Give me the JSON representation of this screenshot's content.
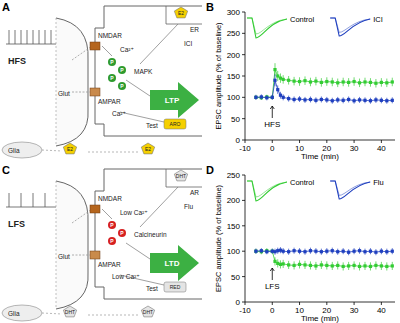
{
  "panel_labels": [
    "A",
    "B",
    "C",
    "D"
  ],
  "diagrams": [
    {
      "texts": [
        "HFS",
        "NMDAR",
        "Ca²⁺",
        "E2",
        "ER",
        "ICI",
        "MAPK",
        "LTP",
        "Glut",
        "AMPAR",
        "Ca²⁺",
        "Test",
        "ARO",
        "Glia",
        "E2",
        "E2",
        "P",
        "P",
        "P",
        "P"
      ]
    },
    {
      "texts": [
        "LFS",
        "NMDAR",
        "Low Ca²⁺",
        "DHT",
        "AR",
        "Flu",
        "Calcineurin",
        "LTD",
        "Glut",
        "AMPAR",
        "Low Ca²⁺",
        "Test",
        "RED",
        "Glia",
        "DHT",
        "DHT",
        "P",
        "P",
        "P"
      ]
    }
  ],
  "chart_data": [
    {
      "type": "line",
      "x_label": "Time (min)",
      "y_label": "EPSC amplitude (% of baseline)",
      "x": [
        -6,
        -4,
        -2,
        0,
        1,
        2,
        3,
        4,
        6,
        8,
        10,
        12,
        14,
        16,
        18,
        20,
        22,
        24,
        26,
        28,
        30,
        32,
        34,
        36,
        38,
        40,
        42,
        44
      ],
      "xlim": [
        -10,
        45
      ],
      "xticks": [
        -10,
        0,
        10,
        20,
        30,
        40
      ],
      "ylim": [
        0,
        300
      ],
      "yticks": [
        0,
        50,
        100,
        150,
        200,
        250,
        300
      ],
      "grid": false,
      "legend": "upper right",
      "annotations": [
        {
          "text": "HFS",
          "x": 0
        }
      ],
      "series": [
        {
          "name": "Control",
          "color": "#33cc33",
          "marker": "square",
          "values": [
            100,
            99,
            101,
            100,
            165,
            150,
            145,
            142,
            140,
            138,
            137,
            139,
            136,
            138,
            135,
            137,
            136,
            134,
            136,
            135,
            137,
            134,
            136,
            135,
            133,
            135,
            134,
            136
          ],
          "errors": [
            5,
            5,
            5,
            5,
            15,
            12,
            11,
            10,
            10,
            10,
            10,
            10,
            10,
            10,
            10,
            10,
            10,
            10,
            10,
            10,
            10,
            10,
            10,
            10,
            10,
            10,
            10,
            10
          ]
        },
        {
          "name": "ICI",
          "color": "#1f3fbf",
          "marker": "square",
          "values": [
            100,
            101,
            99,
            100,
            140,
            118,
            105,
            100,
            97,
            95,
            96,
            94,
            95,
            93,
            95,
            94,
            92,
            94,
            93,
            95,
            92,
            94,
            93,
            92,
            94,
            93,
            92,
            93
          ],
          "errors": [
            6,
            6,
            6,
            6,
            14,
            10,
            8,
            7,
            7,
            7,
            7,
            7,
            7,
            7,
            7,
            7,
            7,
            7,
            7,
            7,
            7,
            7,
            7,
            7,
            7,
            7,
            7,
            7
          ]
        }
      ]
    },
    {
      "type": "line",
      "x_label": "Time (min)",
      "y_label": "EPSC amplitude (% of baseline)",
      "x": [
        -6,
        -4,
        -2,
        0,
        1,
        2,
        3,
        4,
        6,
        8,
        10,
        12,
        14,
        16,
        18,
        20,
        22,
        24,
        26,
        28,
        30,
        32,
        34,
        36,
        38,
        40,
        42,
        44
      ],
      "xlim": [
        -10,
        45
      ],
      "xticks": [
        -10,
        0,
        10,
        20,
        30,
        40
      ],
      "ylim": [
        0,
        250
      ],
      "yticks": [
        0,
        50,
        100,
        150,
        200,
        250
      ],
      "grid": false,
      "legend": "upper right",
      "annotations": [
        {
          "text": "LFS",
          "x": 0
        }
      ],
      "series": [
        {
          "name": "Control",
          "color": "#33cc33",
          "marker": "square",
          "values": [
            100,
            99,
            101,
            100,
            80,
            76,
            74,
            75,
            73,
            72,
            74,
            73,
            72,
            71,
            73,
            72,
            71,
            72,
            70,
            71,
            72,
            70,
            71,
            70,
            72,
            71,
            70,
            71
          ],
          "errors": [
            5,
            5,
            5,
            5,
            8,
            8,
            8,
            8,
            8,
            8,
            8,
            8,
            8,
            8,
            8,
            8,
            8,
            8,
            8,
            8,
            8,
            8,
            8,
            8,
            8,
            8,
            8,
            8
          ]
        },
        {
          "name": "Flu",
          "color": "#1f3fbf",
          "marker": "square",
          "values": [
            100,
            101,
            99,
            100,
            99,
            101,
            102,
            100,
            99,
            101,
            100,
            99,
            101,
            100,
            99,
            100,
            101,
            99,
            100,
            98,
            100,
            101,
            99,
            100,
            98,
            100,
            99,
            100
          ],
          "errors": [
            5,
            5,
            5,
            5,
            6,
            6,
            6,
            6,
            6,
            6,
            6,
            6,
            6,
            6,
            6,
            6,
            6,
            6,
            6,
            6,
            6,
            6,
            6,
            6,
            6,
            6,
            6,
            6
          ]
        }
      ]
    }
  ]
}
